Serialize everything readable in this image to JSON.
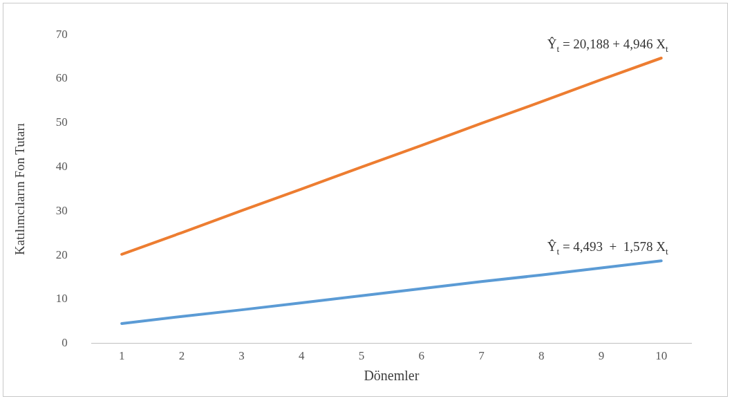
{
  "chart_data": {
    "type": "line",
    "xlabel": "Dönemler",
    "ylabel": "Katılımcıların Fon Tutarı",
    "categories": [
      "1",
      "2",
      "3",
      "4",
      "5",
      "6",
      "7",
      "8",
      "9",
      "10"
    ],
    "series": [
      {
        "color": "#ed7d31",
        "values": [
          20.2,
          25.1,
          30.1,
          35.0,
          40.0,
          44.9,
          49.9,
          54.8,
          59.8,
          64.7
        ]
      },
      {
        "color": "#5b9bd5",
        "values": [
          4.5,
          6.1,
          7.6,
          9.2,
          10.8,
          12.4,
          14.0,
          15.5,
          17.1,
          18.7
        ]
      }
    ],
    "ylim": [
      0,
      70
    ],
    "yticks": [
      0,
      10,
      20,
      30,
      40,
      50,
      60,
      70
    ],
    "grid": false,
    "legend": false,
    "marker": "none",
    "line_style": "solid",
    "annotations": [
      {
        "text": "Ŷ$_{t}$ = 20,188 + 4,946 X$_{t}$",
        "x": "10",
        "y": 64.7
      },
      {
        "text": "Ŷ$_{t}$ = 4,493  +  1,578 X$_{t}$",
        "x": "10",
        "y": 18.7
      }
    ]
  }
}
